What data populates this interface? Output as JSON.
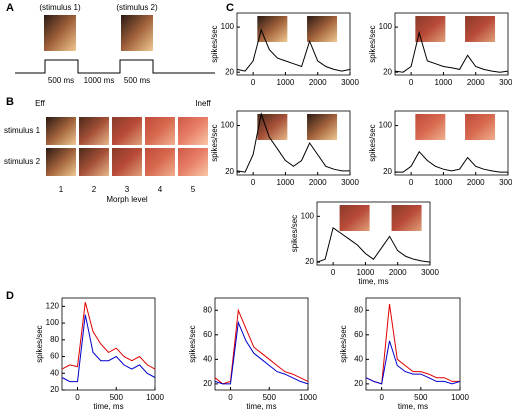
{
  "panel_labels": [
    "A",
    "B",
    "C",
    "D"
  ],
  "panel_a": {
    "stimulus_labels": [
      "(stimulus 1)",
      "(stimulus 2)"
    ],
    "durations": [
      "500 ms",
      "1000 ms",
      "500 ms"
    ]
  },
  "panel_b": {
    "ends": [
      "Eff",
      "Ineff"
    ],
    "rows": [
      "stimulus 1",
      "stimulus 2"
    ],
    "levels": [
      "1",
      "2",
      "3",
      "4",
      "5"
    ],
    "xlabel": "Morph level"
  },
  "chart_data": [
    {
      "type": "line",
      "ylabel": "spikes/sec",
      "x": [
        -500,
        -250,
        0,
        250,
        500,
        750,
        1000,
        1250,
        1500,
        1750,
        2000,
        2250,
        2500,
        2750,
        3000
      ],
      "series": [
        {
          "color": "#000000",
          "values": [
            25,
            22,
            40,
            95,
            60,
            45,
            40,
            35,
            30,
            75,
            40,
            30,
            25,
            22,
            25
          ]
        }
      ],
      "xlim": [
        -500,
        3000
      ],
      "xticks": [
        0,
        1000,
        2000,
        3000
      ],
      "ylim": [
        15,
        125
      ],
      "yticks": [
        20,
        100
      ]
    },
    {
      "type": "line",
      "ylabel": "spikes/sec",
      "x": [
        -500,
        -250,
        0,
        250,
        500,
        750,
        1000,
        1250,
        1500,
        1750,
        2000,
        2250,
        2500,
        2750,
        3000
      ],
      "series": [
        {
          "color": "#000000",
          "values": [
            22,
            20,
            30,
            90,
            40,
            35,
            30,
            28,
            25,
            50,
            30,
            25,
            22,
            20,
            22
          ]
        }
      ],
      "xlim": [
        -500,
        3000
      ],
      "xticks": [
        0,
        1000,
        2000,
        3000
      ],
      "ylim": [
        15,
        125
      ],
      "yticks": [
        20,
        100
      ]
    },
    {
      "type": "line",
      "ylabel": "spikes/sec",
      "x": [
        -500,
        -250,
        0,
        250,
        500,
        750,
        1000,
        1250,
        1500,
        1750,
        2000,
        2250,
        2500,
        2750,
        3000
      ],
      "series": [
        {
          "color": "#000000",
          "values": [
            22,
            20,
            50,
            120,
            80,
            60,
            40,
            30,
            40,
            70,
            50,
            30,
            25,
            22,
            22
          ]
        }
      ],
      "xlim": [
        -500,
        3000
      ],
      "xticks": [
        0,
        1000,
        2000,
        3000
      ],
      "ylim": [
        15,
        125
      ],
      "yticks": [
        20,
        100
      ]
    },
    {
      "type": "line",
      "ylabel": "spikes/sec",
      "x": [
        -500,
        -250,
        0,
        250,
        500,
        750,
        1000,
        1250,
        1500,
        1750,
        2000,
        2250,
        2500,
        2750,
        3000
      ],
      "series": [
        {
          "color": "#000000",
          "values": [
            20,
            20,
            30,
            55,
            40,
            30,
            25,
            22,
            25,
            45,
            30,
            25,
            22,
            20,
            20
          ]
        }
      ],
      "xlim": [
        -500,
        3000
      ],
      "xticks": [
        0,
        1000,
        2000,
        3000
      ],
      "ylim": [
        15,
        125
      ],
      "yticks": [
        20,
        100
      ]
    },
    {
      "type": "line",
      "ylabel": "spikes/sec",
      "xlabel": "time, ms",
      "x": [
        -500,
        -250,
        0,
        250,
        500,
        750,
        1000,
        1250,
        1500,
        1750,
        2000,
        2250,
        2500,
        2750,
        3000
      ],
      "series": [
        {
          "color": "#000000",
          "values": [
            20,
            25,
            80,
            70,
            60,
            50,
            35,
            25,
            45,
            65,
            40,
            30,
            25,
            22,
            20
          ]
        }
      ],
      "xlim": [
        -500,
        3000
      ],
      "xticks": [
        0,
        1000,
        2000,
        3000
      ],
      "ylim": [
        15,
        125
      ],
      "yticks": [
        20,
        100
      ]
    },
    {
      "type": "line",
      "ylabel": "spikes/sec",
      "xlabel": "time, ms",
      "x": [
        -200,
        -100,
        0,
        100,
        200,
        300,
        400,
        500,
        600,
        700,
        800,
        900,
        1000
      ],
      "series": [
        {
          "color": "#e00000",
          "values": [
            45,
            50,
            48,
            125,
            90,
            75,
            65,
            70,
            60,
            55,
            60,
            50,
            45
          ]
        },
        {
          "color": "#0000cc",
          "values": [
            35,
            30,
            30,
            110,
            65,
            55,
            55,
            60,
            50,
            45,
            50,
            40,
            35
          ]
        }
      ],
      "xlim": [
        -200,
        1000
      ],
      "xticks": [
        0,
        500,
        1000
      ],
      "ylim": [
        20,
        130
      ],
      "yticks": [
        20,
        40,
        60,
        80,
        100,
        120
      ]
    },
    {
      "type": "line",
      "ylabel": "spikes/sec",
      "xlabel": "time, ms",
      "x": [
        -200,
        -100,
        0,
        100,
        200,
        300,
        400,
        500,
        600,
        700,
        800,
        900,
        1000
      ],
      "series": [
        {
          "color": "#e00000",
          "values": [
            25,
            20,
            22,
            80,
            65,
            50,
            45,
            40,
            35,
            30,
            28,
            25,
            22
          ]
        },
        {
          "color": "#0000cc",
          "values": [
            22,
            20,
            20,
            70,
            55,
            45,
            40,
            35,
            30,
            28,
            25,
            22,
            20
          ]
        }
      ],
      "xlim": [
        -200,
        1000
      ],
      "xticks": [
        0,
        500,
        1000
      ],
      "ylim": [
        15,
        90
      ],
      "yticks": [
        20,
        40,
        60,
        80
      ]
    },
    {
      "type": "line",
      "ylabel": "spikes/sec",
      "xlabel": "time, ms",
      "x": [
        -200,
        -100,
        0,
        100,
        200,
        300,
        400,
        500,
        600,
        700,
        800,
        900,
        1000
      ],
      "series": [
        {
          "color": "#e00000",
          "values": [
            25,
            22,
            20,
            85,
            40,
            35,
            30,
            30,
            28,
            25,
            25,
            22,
            22
          ]
        },
        {
          "color": "#0000cc",
          "values": [
            25,
            22,
            20,
            55,
            35,
            30,
            28,
            28,
            25,
            22,
            22,
            20,
            22
          ]
        }
      ],
      "xlim": [
        -200,
        1000
      ],
      "xticks": [
        0,
        500,
        1000
      ],
      "ylim": [
        15,
        90
      ],
      "yticks": [
        20,
        40,
        60,
        80
      ]
    }
  ]
}
